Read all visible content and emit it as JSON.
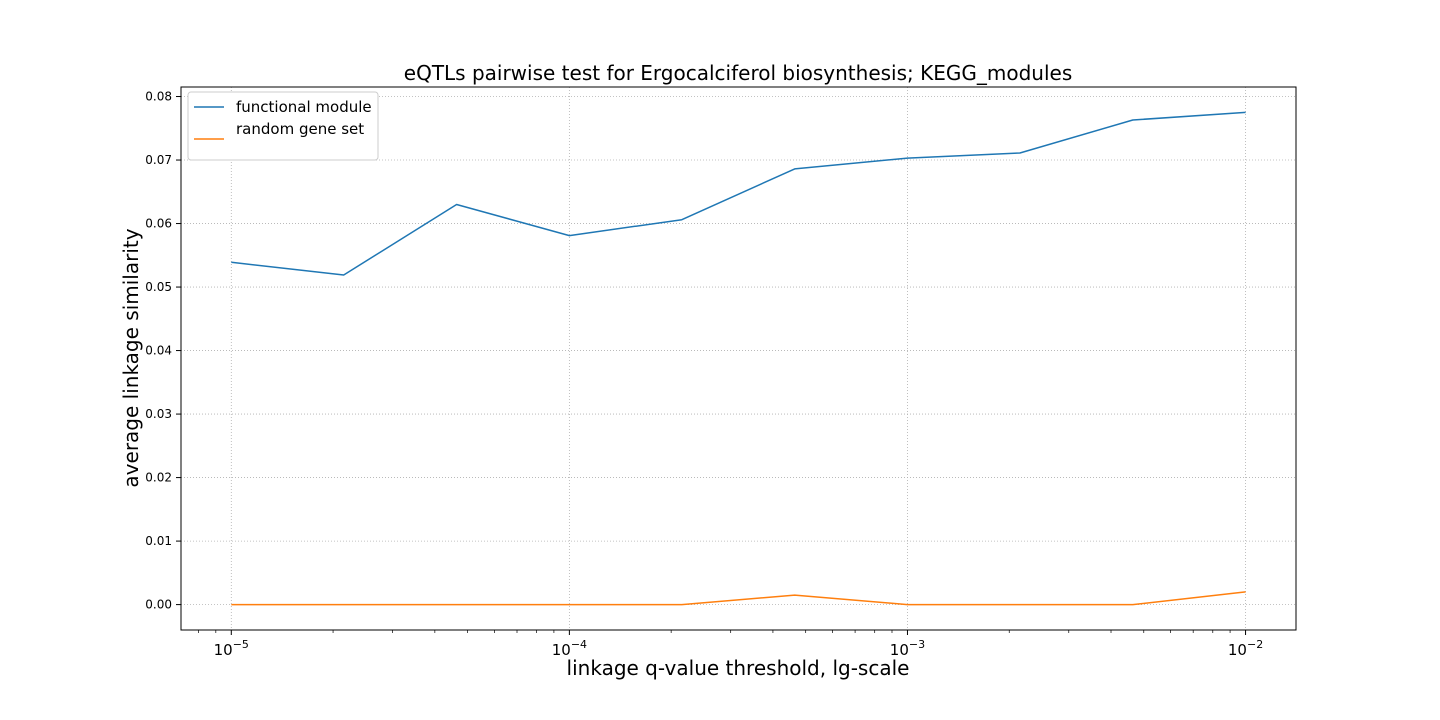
{
  "chart_data": {
    "type": "line",
    "title": "eQTLs pairwise test for Ergocalciferol biosynthesis; KEGG_modules",
    "xlabel": "linkage q-value threshold, lg-scale",
    "ylabel": "average linkage similarity",
    "x_scale": "log10",
    "x": [
      1e-05,
      2.15e-05,
      4.64e-05,
      0.0001,
      0.000215,
      0.000464,
      0.001,
      0.00215,
      0.00464,
      0.01
    ],
    "xlim": [
      7.1e-06,
      0.0141
    ],
    "ylim": [
      -0.004,
      0.0815
    ],
    "x_ticks": [
      {
        "value": 1e-05,
        "base": "10",
        "exp": "−5"
      },
      {
        "value": 0.0001,
        "base": "10",
        "exp": "−4"
      },
      {
        "value": 0.001,
        "base": "10",
        "exp": "−3"
      },
      {
        "value": 0.01,
        "base": "10",
        "exp": "−2"
      }
    ],
    "y_ticks": [
      {
        "value": 0.0,
        "label": "0.00"
      },
      {
        "value": 0.01,
        "label": "0.01"
      },
      {
        "value": 0.02,
        "label": "0.02"
      },
      {
        "value": 0.03,
        "label": "0.03"
      },
      {
        "value": 0.04,
        "label": "0.04"
      },
      {
        "value": 0.05,
        "label": "0.05"
      },
      {
        "value": 0.06,
        "label": "0.06"
      },
      {
        "value": 0.07,
        "label": "0.07"
      },
      {
        "value": 0.08,
        "label": "0.08"
      }
    ],
    "grid": true,
    "legend_position": "top-left",
    "series": [
      {
        "name": "functional module",
        "color": "#1f77b4",
        "values": [
          0.0539,
          0.0519,
          0.063,
          0.0581,
          0.0606,
          0.0686,
          0.0703,
          0.0711,
          0.0763,
          0.0775
        ]
      },
      {
        "name": "random gene set",
        "color": "#ff7f0e",
        "values": [
          0.0,
          0.0,
          0.0,
          0.0,
          0.0,
          0.0015,
          0.0,
          0.0,
          0.0,
          0.002
        ]
      }
    ]
  }
}
